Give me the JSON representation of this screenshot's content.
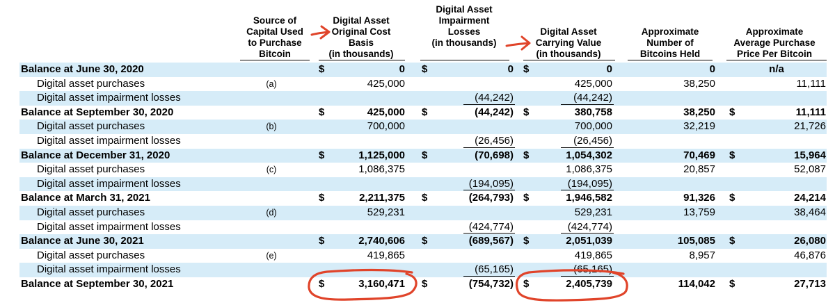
{
  "headers": {
    "source": "Source of\nCapital Used\nto Purchase\nBitcoin",
    "cost": "Digital Asset\nOriginal Cost\nBasis\n(in thousands)",
    "impairment": "Digital Asset\nImpairment\nLosses\n(in thousands)",
    "carrying": "Digital Asset\nCarrying Value\n(in thousands)",
    "number": "Approximate\nNumber of\nBitcoins Held",
    "price": "Approximate\nAverage Purchase\nPrice Per Bitcoin"
  },
  "rows": [
    {
      "label": "Balance at June 30, 2020",
      "bold": true,
      "shade": true,
      "note": "",
      "cost": "0",
      "cost_dol": "$",
      "imp": "0",
      "imp_dol": "$",
      "carry": "0",
      "carry_dol": "$",
      "num": "0",
      "price": "n/a",
      "price_dol": "",
      "price_center": true
    },
    {
      "label": "Digital asset purchases",
      "bold": false,
      "shade": false,
      "note": "(a)",
      "cost": "425,000",
      "imp": "",
      "carry": "425,000",
      "num": "38,250",
      "price": "11,111"
    },
    {
      "label": "Digital asset impairment losses",
      "bold": false,
      "shade": true,
      "note": "",
      "cost": "",
      "imp": "(44,242)",
      "carry": "(44,242)",
      "num": "",
      "price": "",
      "ul": true
    },
    {
      "label": "Balance at September 30, 2020",
      "bold": true,
      "shade": false,
      "note": "",
      "cost": "425,000",
      "cost_dol": "$",
      "imp": "(44,242)",
      "imp_dol": "$",
      "carry": "380,758",
      "carry_dol": "$",
      "num": "38,250",
      "price": "11,111",
      "price_dol": "$"
    },
    {
      "label": "Digital asset purchases",
      "bold": false,
      "shade": true,
      "note": "(b)",
      "cost": "700,000",
      "imp": "",
      "carry": "700,000",
      "num": "32,219",
      "price": "21,726"
    },
    {
      "label": "Digital asset impairment losses",
      "bold": false,
      "shade": false,
      "note": "",
      "cost": "",
      "imp": "(26,456)",
      "carry": "(26,456)",
      "num": "",
      "price": "",
      "ul": true
    },
    {
      "label": "Balance at December 31, 2020",
      "bold": true,
      "shade": true,
      "note": "",
      "cost": "1,125,000",
      "cost_dol": "$",
      "imp": "(70,698)",
      "imp_dol": "$",
      "carry": "1,054,302",
      "carry_dol": "$",
      "num": "70,469",
      "price": "15,964",
      "price_dol": "$"
    },
    {
      "label": "Digital asset purchases",
      "bold": false,
      "shade": false,
      "note": "(c)",
      "cost": "1,086,375",
      "imp": "",
      "carry": "1,086,375",
      "num": "20,857",
      "price": "52,087"
    },
    {
      "label": "Digital asset impairment losses",
      "bold": false,
      "shade": true,
      "note": "",
      "cost": "",
      "imp": "(194,095)",
      "carry": "(194,095)",
      "num": "",
      "price": "",
      "ul": true
    },
    {
      "label": "Balance at March 31, 2021",
      "bold": true,
      "shade": false,
      "note": "",
      "cost": "2,211,375",
      "cost_dol": "$",
      "imp": "(264,793)",
      "imp_dol": "$",
      "carry": "1,946,582",
      "carry_dol": "$",
      "num": "91,326",
      "price": "24,214",
      "price_dol": "$"
    },
    {
      "label": "Digital asset purchases",
      "bold": false,
      "shade": true,
      "note": "(d)",
      "cost": "529,231",
      "imp": "",
      "carry": "529,231",
      "num": "13,759",
      "price": "38,464"
    },
    {
      "label": "Digital asset impairment losses",
      "bold": false,
      "shade": false,
      "note": "",
      "cost": "",
      "imp": "(424,774)",
      "carry": "(424,774)",
      "num": "",
      "price": "",
      "ul": true
    },
    {
      "label": "Balance at June 30, 2021",
      "bold": true,
      "shade": true,
      "note": "",
      "cost": "2,740,606",
      "cost_dol": "$",
      "imp": "(689,567)",
      "imp_dol": "$",
      "carry": "2,051,039",
      "carry_dol": "$",
      "num": "105,085",
      "price": "26,080",
      "price_dol": "$"
    },
    {
      "label": "Digital asset purchases",
      "bold": false,
      "shade": false,
      "note": "(e)",
      "cost": "419,865",
      "imp": "",
      "carry": "419,865",
      "num": "8,957",
      "price": "46,876"
    },
    {
      "label": "Digital asset impairment losses",
      "bold": false,
      "shade": true,
      "note": "",
      "cost": "",
      "imp": "(65,165)",
      "carry": "(65,165)",
      "num": "",
      "price": "",
      "ul": true
    },
    {
      "label": "Balance at September 30, 2021",
      "bold": true,
      "shade": false,
      "note": "",
      "cost": "3,160,471",
      "cost_dol": "$",
      "imp": "(754,732)",
      "imp_dol": "$",
      "carry": "2,405,739",
      "carry_dol": "$",
      "num": "114,042",
      "price": "27,713",
      "price_dol": "$"
    }
  ],
  "annotation_color": "#e0442a"
}
